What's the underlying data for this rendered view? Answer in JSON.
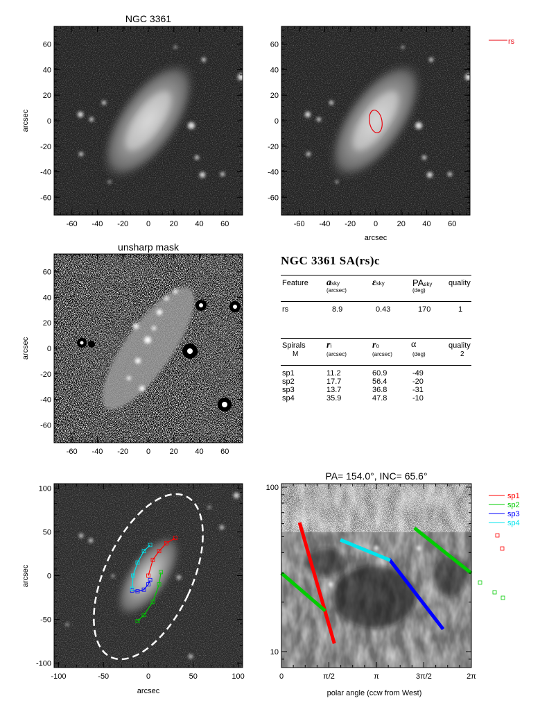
{
  "figure": {
    "galaxy_title": "NGC 3361",
    "unsharp_title": "unsharp mask",
    "axis_label": "arcsec",
    "polar_title": "PA= 154.0°, INC=  65.6°",
    "polar_xlabel": "polar angle (ccw from West)",
    "tick_labels_70": [
      "-60",
      "-40",
      "-20",
      "0",
      "20",
      "40",
      "60"
    ],
    "tick_labels_100": [
      "-100",
      "-50",
      "0",
      "50",
      "100"
    ],
    "polar_x_ticks": [
      "0",
      "π/2",
      "π",
      "3π/2",
      "2π"
    ],
    "polar_y_ticks": [
      "100",
      "10"
    ]
  },
  "legend_top": {
    "items": [
      {
        "label": "rs",
        "color": "#e8000b"
      }
    ]
  },
  "legend_spirals": {
    "items": [
      {
        "label": "sp1",
        "color": "#ff0000"
      },
      {
        "label": "sp2",
        "color": "#00cc00"
      },
      {
        "label": "sp3",
        "color": "#0000ff"
      },
      {
        "label": "sp4",
        "color": "#00e5ee"
      }
    ]
  },
  "table": {
    "title": "NGC 3361  SA(rs)c",
    "feature_header": {
      "feature": "Feature",
      "a": "a",
      "a_sub": "sky",
      "a_unit": "(arcsec)",
      "e": "ε",
      "e_sub": "sky",
      "pa": "PA",
      "pa_sub": "sky",
      "pa_unit": "(deg)",
      "quality": "quality"
    },
    "features": [
      {
        "name": "rs",
        "a": "8.9",
        "e": "0.43",
        "pa": "170",
        "q": "1"
      }
    ],
    "spiral_header": {
      "spirals": "Spirals",
      "m": "M",
      "ri": "r",
      "ri_sub": "i",
      "ri_unit": "(arcsec)",
      "ro": "r",
      "ro_sub": "o",
      "ro_unit": "(arcsec)",
      "alpha": "α",
      "alpha_unit": "(deg)",
      "quality": "quality",
      "quality_val": "2"
    },
    "spirals": [
      {
        "name": "sp1",
        "ri": "11.2",
        "ro": "60.9",
        "alpha": "-49"
      },
      {
        "name": "sp2",
        "ri": "17.7",
        "ro": "56.4",
        "alpha": "-20"
      },
      {
        "name": "sp3",
        "ri": "13.7",
        "ro": "36.8",
        "alpha": "-31"
      },
      {
        "name": "sp4",
        "ri": "35.9",
        "ro": "47.8",
        "alpha": "-10"
      }
    ]
  },
  "chart_data": [
    {
      "type": "scatter",
      "panel": "image",
      "title": "NGC 3361",
      "xlim": [
        -74,
        74
      ],
      "ylim": [
        -74,
        74
      ],
      "ylabel": "arcsec",
      "xlabel": ""
    },
    {
      "type": "scatter",
      "panel": "image-with-ellipse",
      "xlim": [
        -74,
        74
      ],
      "ylim": [
        -74,
        74
      ],
      "xlabel": "arcsec",
      "annotations": [
        {
          "kind": "ellipse",
          "label": "rs",
          "a": 8.9,
          "e": 0.43,
          "pa": 170,
          "color": "#e8000b"
        }
      ]
    },
    {
      "type": "scatter",
      "panel": "unsharp-mask",
      "title": "unsharp mask",
      "xlim": [
        -74,
        74
      ],
      "ylim": [
        -74,
        74
      ],
      "ylabel": "arcsec"
    },
    {
      "type": "scatter",
      "panel": "spiral-overlay",
      "xlim": [
        -105,
        105
      ],
      "ylim": [
        -105,
        105
      ],
      "xlabel": "arcsec",
      "ylabel": "arcsec",
      "series": [
        {
          "name": "sp1",
          "x": [
            0,
            5,
            12,
            20,
            30
          ],
          "y": [
            0,
            18,
            28,
            37,
            43
          ]
        },
        {
          "name": "sp2",
          "x": [
            -12,
            -5,
            5,
            12,
            14
          ],
          "y": [
            -52,
            -45,
            -30,
            -10,
            4
          ]
        },
        {
          "name": "sp3",
          "x": [
            -18,
            -12,
            -5,
            0,
            2
          ],
          "y": [
            -17,
            -18,
            -16,
            -10,
            -5
          ]
        },
        {
          "name": "sp4",
          "x": [
            -18,
            -17,
            -12,
            -5,
            2
          ],
          "y": [
            -15,
            0,
            15,
            28,
            35
          ]
        }
      ]
    },
    {
      "type": "line",
      "panel": "polar",
      "title": "PA= 154.0°, INC=  65.6°",
      "xlabel": "polar angle (ccw from West)",
      "xlim": [
        0,
        6.2832
      ],
      "ylim": [
        8,
        105
      ],
      "yscale": "log",
      "series": [
        {
          "name": "sp1",
          "x": [
            0.6,
            1.75
          ],
          "y": [
            60.9,
            11.2
          ]
        },
        {
          "name": "sp2",
          "x": [
            0,
            1.45,
            4.4,
            6.28
          ],
          "y": [
            30,
            17.7,
            56.4,
            30
          ]
        },
        {
          "name": "sp3",
          "x": [
            3.55,
            5.35
          ],
          "y": [
            36.8,
            13.7
          ]
        },
        {
          "name": "sp4",
          "x": [
            1.95,
            3.6
          ],
          "y": [
            47.8,
            35.9
          ]
        }
      ]
    }
  ]
}
